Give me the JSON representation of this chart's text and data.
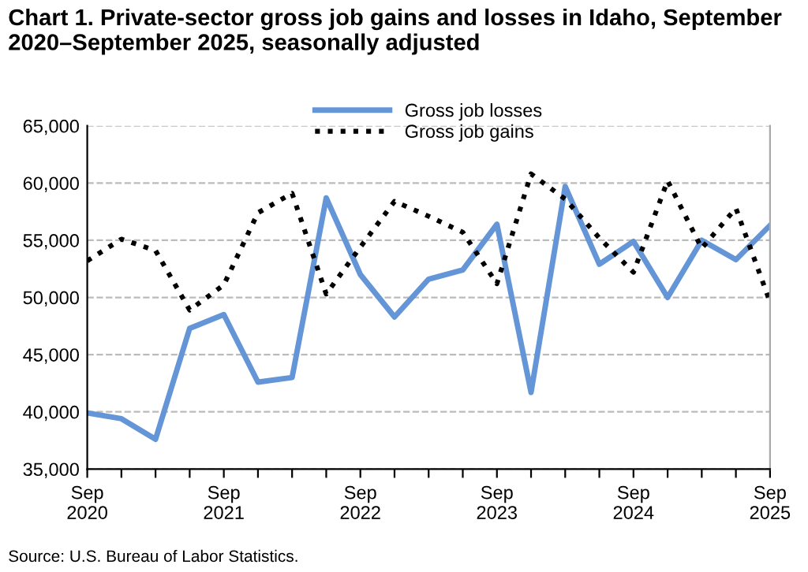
{
  "chart_data": {
    "type": "line",
    "title": "Chart 1. Private-sector gross job gains and losses in Idaho, September 2020–September 2025, seasonally adjusted",
    "categories": [
      "Sep\n2020",
      null,
      null,
      null,
      "Sep\n2021",
      null,
      null,
      null,
      "Sep\n2022",
      null,
      null,
      null,
      "Sep\n2023",
      null,
      null,
      null,
      "Sep\n2024",
      null,
      null,
      null,
      "Sep\n2025"
    ],
    "series": [
      {
        "name": "Gross job losses",
        "color": "#6495d6",
        "line_style": "solid",
        "values": [
          39900,
          39400,
          37600,
          47300,
          48500,
          42600,
          43000,
          58700,
          52000,
          48300,
          51600,
          52400,
          56400,
          41700,
          59700,
          52900,
          54900,
          50000,
          55000,
          53300,
          56300
        ]
      },
      {
        "name": "Gross job gains",
        "color": "#000000",
        "line_style": "dotted",
        "values": [
          53200,
          55100,
          54100,
          48900,
          51100,
          57400,
          59100,
          50300,
          54400,
          58400,
          57100,
          55700,
          51200,
          60800,
          58600,
          55200,
          52200,
          60200,
          54300,
          57800,
          49600
        ]
      }
    ],
    "ylim": [
      35000,
      65000
    ],
    "yticks": [
      {
        "value": 35000,
        "label": "35,000"
      },
      {
        "value": 40000,
        "label": "40,000"
      },
      {
        "value": 45000,
        "label": "45,000"
      },
      {
        "value": 50000,
        "label": "50,000"
      },
      {
        "value": 55000,
        "label": "55,000"
      },
      {
        "value": 60000,
        "label": "60,000"
      },
      {
        "value": 65000,
        "label": "65,000"
      }
    ],
    "grid": "y",
    "legend": "top",
    "marker": "none",
    "annotations": [
      "Source: U.S. Bureau of Labor Statistics."
    ]
  }
}
